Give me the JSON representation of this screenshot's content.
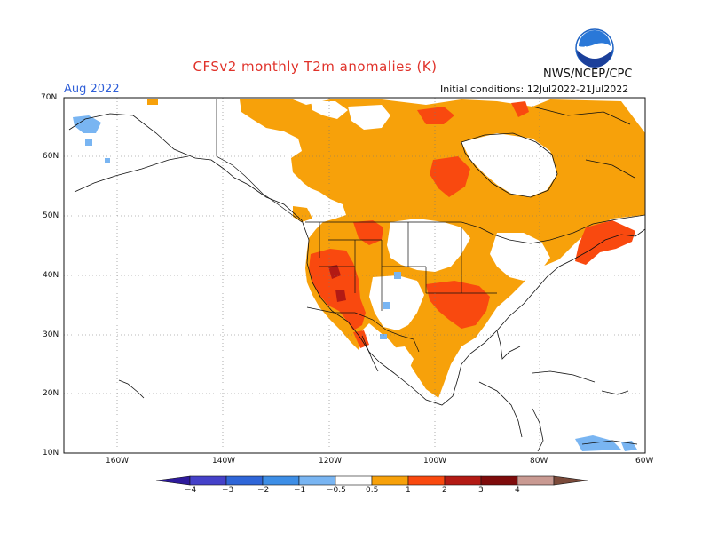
{
  "title": "CFSv2 monthly T2m anomalies (K)",
  "agency": "NWS/NCEP/CPC",
  "month_label": "Aug 2022",
  "initial_conditions": "Initial conditions: 12Jul2022-21Jul2022",
  "logo": {
    "icon": "noaa-logo-icon",
    "text": "NOAA"
  },
  "lat_labels": [
    "70N",
    "60N",
    "50N",
    "40N",
    "30N",
    "20N",
    "10N"
  ],
  "lon_labels": [
    "160W",
    "140W",
    "120W",
    "100W",
    "80W",
    "60W"
  ],
  "colorbar": {
    "ticks": [
      "−4",
      "−3",
      "−2",
      "−1",
      "−0.5",
      "0.5",
      "1",
      "2",
      "3",
      "4"
    ],
    "colors": [
      "#2e1a9c",
      "#4541c9",
      "#2f66d8",
      "#3d8ee6",
      "#79b5f2",
      "#ffffff",
      "#f7a10a",
      "#f9490f",
      "#b31a14",
      "#7e0b0b",
      "#c99a92",
      "#7b4a3a"
    ]
  },
  "colors": {
    "anomaly_05_1": "#f7a10a",
    "anomaly_1_2": "#f9490f",
    "anomaly_2_3": "#b31a14",
    "cold_05_1": "#79b5f2",
    "cold_1_2": "#3d8ee6",
    "title": "#e0322a",
    "month": "#2f5fd8"
  }
}
